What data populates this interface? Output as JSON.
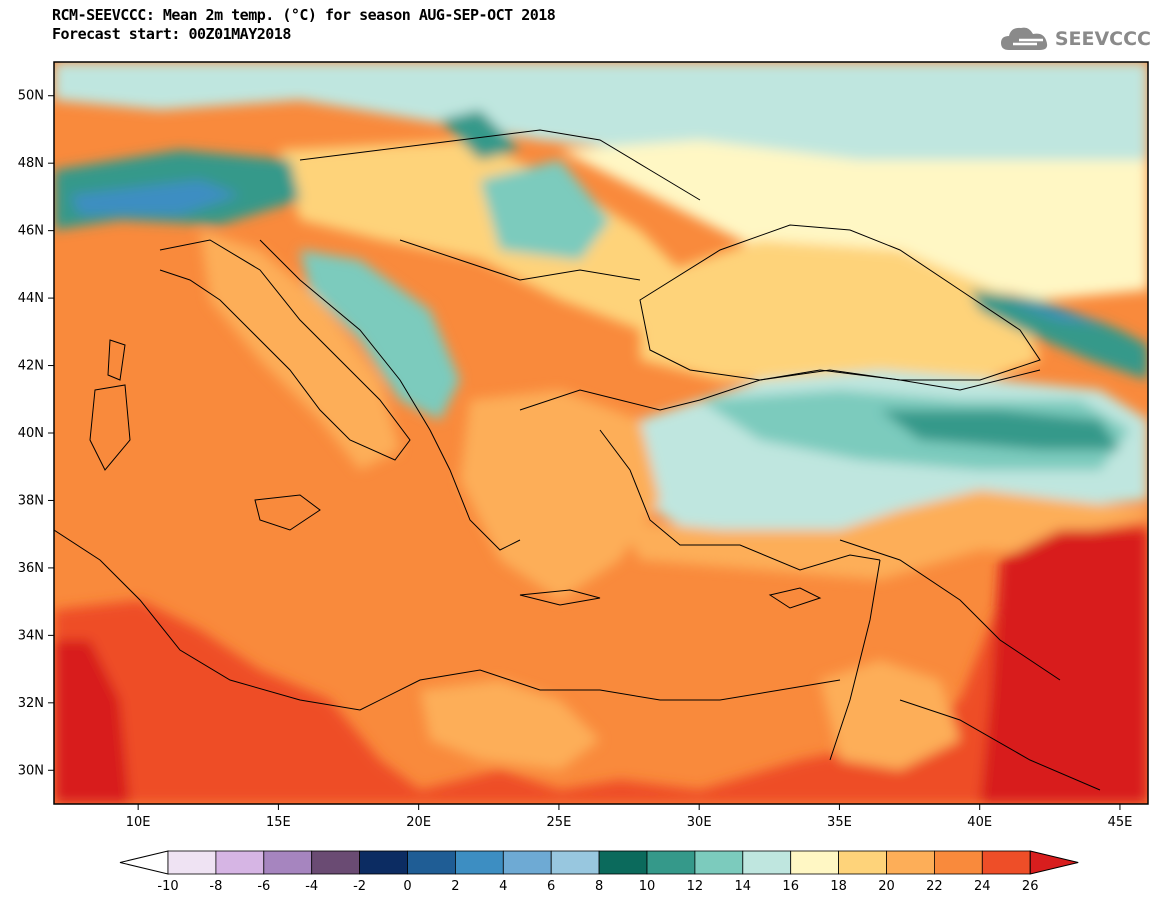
{
  "header": {
    "title_line1": "RCM-SEEVCCC: Mean 2m temp. (°C) for season AUG-SEP-OCT 2018",
    "title_line2": "Forecast start: 00Z01MAY2018"
  },
  "logo": {
    "text": "SEEVCCC",
    "icon": "cloud-icon",
    "color": "#8a8a8a"
  },
  "map": {
    "lon_range": [
      7,
      46
    ],
    "lat_range": [
      29,
      51
    ],
    "lon_ticks": [
      10,
      15,
      20,
      25,
      30,
      35,
      40,
      45
    ],
    "lon_labels": [
      "10E",
      "15E",
      "20E",
      "25E",
      "30E",
      "35E",
      "40E",
      "45E"
    ],
    "lat_ticks": [
      30,
      32,
      34,
      36,
      38,
      40,
      42,
      44,
      46,
      48,
      50
    ],
    "lat_labels": [
      "30N",
      "32N",
      "34N",
      "36N",
      "38N",
      "40N",
      "42N",
      "44N",
      "46N",
      "48N",
      "50N"
    ]
  },
  "colorbar": {
    "labels": [
      "-10",
      "-8",
      "-6",
      "-4",
      "-2",
      "0",
      "2",
      "4",
      "6",
      "8",
      "10",
      "12",
      "14",
      "16",
      "18",
      "20",
      "22",
      "24",
      "26"
    ],
    "colors": [
      "#ffffff",
      "#efe3f3",
      "#d6b5e4",
      "#a685bf",
      "#6a4b73",
      "#0c2c62",
      "#1f5d95",
      "#3d8ec2",
      "#6eaad4",
      "#98c7df",
      "#0b6a5c",
      "#35998a",
      "#7ccbbd",
      "#bfe6df",
      "#fff7c4",
      "#fed37a",
      "#fdae58",
      "#f98a3c",
      "#ee4e28",
      "#d81e1e"
    ]
  }
}
